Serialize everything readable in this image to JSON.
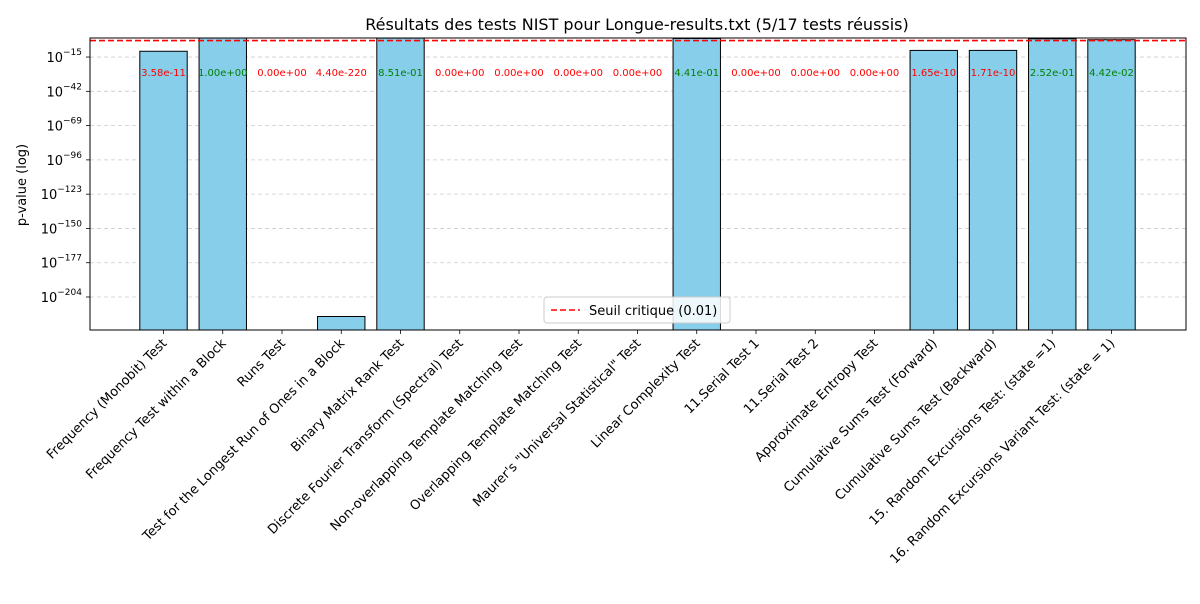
{
  "chart_data": {
    "type": "bar",
    "title": "Résultats des tests NIST pour Longue-results.txt (5/17 tests réussis)",
    "ylabel": "p-value (log)",
    "xlabel": "",
    "yscale": "log",
    "ylim_exponent": [
      -230,
      0
    ],
    "ytick_exponents": [
      -15,
      -42,
      -69,
      -96,
      -123,
      -150,
      -177,
      -204
    ],
    "grid": "y-dashed",
    "bar_color": "#87ceeb",
    "threshold": {
      "value": 0.01,
      "color": "#ff0000",
      "label": "Seuil critique (0.01)"
    },
    "legend_position": "bottom-center",
    "pass_color": "#008000",
    "fail_color": "#ff0000",
    "categories": [
      "Frequency (Monobit) Test",
      "Frequency Test within a Block",
      "Runs Test",
      "Test for the Longest Run of Ones in a Block",
      "Binary Matrix Rank Test",
      "Discrete Fourier Transform (Spectral) Test",
      "Non-overlapping Template Matching Test",
      "Overlapping Template Matching Test",
      "Maurer's \"Universal Statistical\" Test",
      "Linear Complexity Test",
      "11.Serial Test 1",
      "11.Serial Test 2",
      "Approximate Entropy Test",
      "Cumulative Sums Test (Forward)",
      "Cumulative Sums Test (Backward)",
      "15. Random Excursions Test: (state =1)",
      "16. Random Excursions Variant Test: (state = 1)"
    ],
    "values": [
      3.58e-11,
      1.0,
      0.0,
      4.4e-220,
      0.851,
      0.0,
      0.0,
      0.0,
      0.0,
      0.441,
      0.0,
      0.0,
      0.0,
      1.65e-10,
      1.71e-10,
      0.252,
      0.0442
    ],
    "value_labels": [
      "3.58e-11",
      "1.00e+00",
      "0.00e+00",
      "4.40e-220",
      "8.51e-01",
      "0.00e+00",
      "0.00e+00",
      "0.00e+00",
      "0.00e+00",
      "4.41e-01",
      "0.00e+00",
      "0.00e+00",
      "0.00e+00",
      "1.65e-10",
      "1.71e-10",
      "2.52e-01",
      "4.42e-02"
    ],
    "passed": [
      false,
      true,
      false,
      false,
      true,
      false,
      false,
      false,
      false,
      true,
      false,
      false,
      false,
      false,
      false,
      true,
      true
    ]
  }
}
